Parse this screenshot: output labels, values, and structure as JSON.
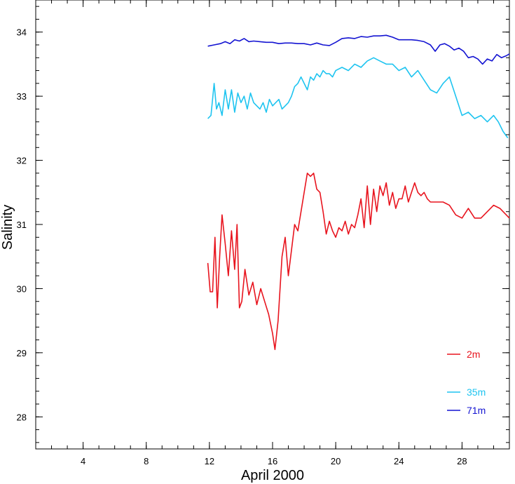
{
  "chart_data": {
    "type": "line",
    "title": "",
    "xlabel": "April 2000",
    "ylabel": "Salinity",
    "xlim": [
      1,
      31
    ],
    "ylim": [
      27.5,
      34.5
    ],
    "x_ticks": [
      4,
      8,
      12,
      16,
      20,
      24,
      28
    ],
    "x_tick_labels": [
      "4",
      "8",
      "12",
      "16",
      "20",
      "24",
      "28"
    ],
    "y_ticks": [
      28,
      29,
      30,
      31,
      32,
      33,
      34
    ],
    "y_tick_labels": [
      "28",
      "29",
      "30",
      "31",
      "32",
      "33",
      "34"
    ],
    "grid": false,
    "legend_position": "bottom-right",
    "series": [
      {
        "name": "2m",
        "color": "#e8141e",
        "x": [
          11.9,
          12.05,
          12.2,
          12.35,
          12.5,
          12.65,
          12.8,
          13.0,
          13.2,
          13.4,
          13.6,
          13.75,
          13.9,
          14.05,
          14.25,
          14.5,
          14.75,
          15.0,
          15.25,
          15.5,
          15.75,
          16.0,
          16.15,
          16.35,
          16.6,
          16.8,
          17.0,
          17.2,
          17.4,
          17.6,
          17.8,
          18.0,
          18.2,
          18.4,
          18.6,
          18.8,
          19.0,
          19.2,
          19.4,
          19.6,
          19.8,
          20.0,
          20.2,
          20.4,
          20.6,
          20.8,
          21.0,
          21.2,
          21.4,
          21.6,
          21.8,
          22.0,
          22.2,
          22.4,
          22.6,
          22.8,
          23.0,
          23.2,
          23.4,
          23.6,
          23.8,
          24.0,
          24.2,
          24.4,
          24.6,
          24.8,
          25.0,
          25.2,
          25.4,
          25.6,
          25.8,
          26.0,
          26.4,
          26.8,
          27.2,
          27.6,
          28.0,
          28.4,
          28.8,
          29.2,
          29.6,
          30.0,
          30.4,
          30.8,
          31.0
        ],
        "y": [
          30.4,
          29.95,
          29.95,
          30.8,
          29.7,
          30.5,
          31.15,
          30.7,
          30.2,
          30.9,
          30.3,
          31.0,
          29.7,
          29.8,
          30.3,
          29.9,
          30.1,
          29.75,
          30.0,
          29.8,
          29.6,
          29.3,
          29.05,
          29.5,
          30.5,
          30.8,
          30.2,
          30.6,
          31.0,
          30.9,
          31.2,
          31.5,
          31.8,
          31.75,
          31.8,
          31.55,
          31.5,
          31.2,
          30.85,
          31.05,
          30.9,
          30.8,
          30.95,
          30.9,
          31.05,
          30.85,
          31.0,
          30.95,
          31.15,
          31.4,
          30.95,
          31.6,
          31.0,
          31.55,
          31.2,
          31.6,
          31.45,
          31.65,
          31.3,
          31.5,
          31.25,
          31.4,
          31.4,
          31.6,
          31.35,
          31.5,
          31.65,
          31.5,
          31.45,
          31.5,
          31.4,
          31.35,
          31.35,
          31.35,
          31.3,
          31.15,
          31.1,
          31.25,
          31.1,
          31.1,
          31.2,
          31.3,
          31.25,
          31.15,
          31.1
        ]
      },
      {
        "name": "35m",
        "color": "#1ec4f0",
        "x": [
          11.9,
          12.1,
          12.3,
          12.45,
          12.6,
          12.8,
          13.0,
          13.2,
          13.4,
          13.6,
          13.8,
          14.0,
          14.2,
          14.4,
          14.6,
          14.8,
          15.0,
          15.2,
          15.4,
          15.6,
          15.8,
          16.0,
          16.2,
          16.4,
          16.6,
          16.8,
          17.0,
          17.2,
          17.4,
          17.6,
          17.8,
          18.0,
          18.2,
          18.4,
          18.6,
          18.8,
          19.0,
          19.2,
          19.4,
          19.6,
          19.8,
          20.0,
          20.4,
          20.8,
          21.2,
          21.6,
          22.0,
          22.4,
          22.8,
          23.2,
          23.6,
          24.0,
          24.4,
          24.8,
          25.2,
          25.6,
          26.0,
          26.4,
          26.8,
          27.2,
          27.6,
          28.0,
          28.4,
          28.8,
          29.2,
          29.6,
          30.0,
          30.3,
          30.6,
          30.9
        ],
        "y": [
          32.65,
          32.7,
          33.2,
          32.8,
          32.9,
          32.7,
          33.1,
          32.8,
          33.1,
          32.75,
          33.05,
          32.9,
          33.0,
          32.8,
          33.05,
          32.9,
          32.85,
          32.8,
          32.9,
          32.75,
          32.95,
          32.85,
          32.9,
          32.95,
          32.8,
          32.85,
          32.9,
          33.0,
          33.15,
          33.2,
          33.3,
          33.2,
          33.1,
          33.3,
          33.25,
          33.35,
          33.3,
          33.4,
          33.35,
          33.35,
          33.3,
          33.4,
          33.45,
          33.4,
          33.5,
          33.45,
          33.55,
          33.6,
          33.55,
          33.5,
          33.5,
          33.4,
          33.45,
          33.3,
          33.4,
          33.25,
          33.1,
          33.05,
          33.2,
          33.3,
          33.0,
          32.7,
          32.75,
          32.65,
          32.7,
          32.6,
          32.7,
          32.6,
          32.45,
          32.35
        ]
      },
      {
        "name": "71m",
        "color": "#1414d2",
        "x": [
          11.9,
          12.3,
          12.7,
          13.0,
          13.3,
          13.6,
          13.9,
          14.2,
          14.5,
          14.8,
          15.2,
          15.6,
          16.0,
          16.4,
          16.8,
          17.2,
          17.6,
          18.0,
          18.4,
          18.8,
          19.2,
          19.6,
          20.0,
          20.4,
          20.8,
          21.2,
          21.6,
          22.0,
          22.4,
          22.8,
          23.2,
          23.6,
          24.0,
          24.4,
          24.8,
          25.2,
          25.6,
          26.0,
          26.3,
          26.6,
          26.9,
          27.2,
          27.5,
          27.8,
          28.1,
          28.4,
          28.7,
          29.0,
          29.3,
          29.6,
          29.9,
          30.2,
          30.5,
          30.8,
          31.0
        ],
        "y": [
          33.78,
          33.8,
          33.82,
          33.85,
          33.82,
          33.88,
          33.86,
          33.9,
          33.85,
          33.86,
          33.85,
          33.84,
          33.84,
          33.82,
          33.83,
          33.83,
          33.82,
          33.82,
          33.8,
          33.83,
          33.8,
          33.79,
          33.84,
          33.9,
          33.91,
          33.9,
          33.93,
          33.92,
          33.94,
          33.94,
          33.95,
          33.92,
          33.88,
          33.88,
          33.88,
          33.87,
          33.85,
          33.8,
          33.7,
          33.8,
          33.82,
          33.78,
          33.72,
          33.75,
          33.7,
          33.6,
          33.62,
          33.58,
          33.5,
          33.58,
          33.55,
          33.65,
          33.6,
          33.63,
          33.66
        ]
      }
    ]
  }
}
